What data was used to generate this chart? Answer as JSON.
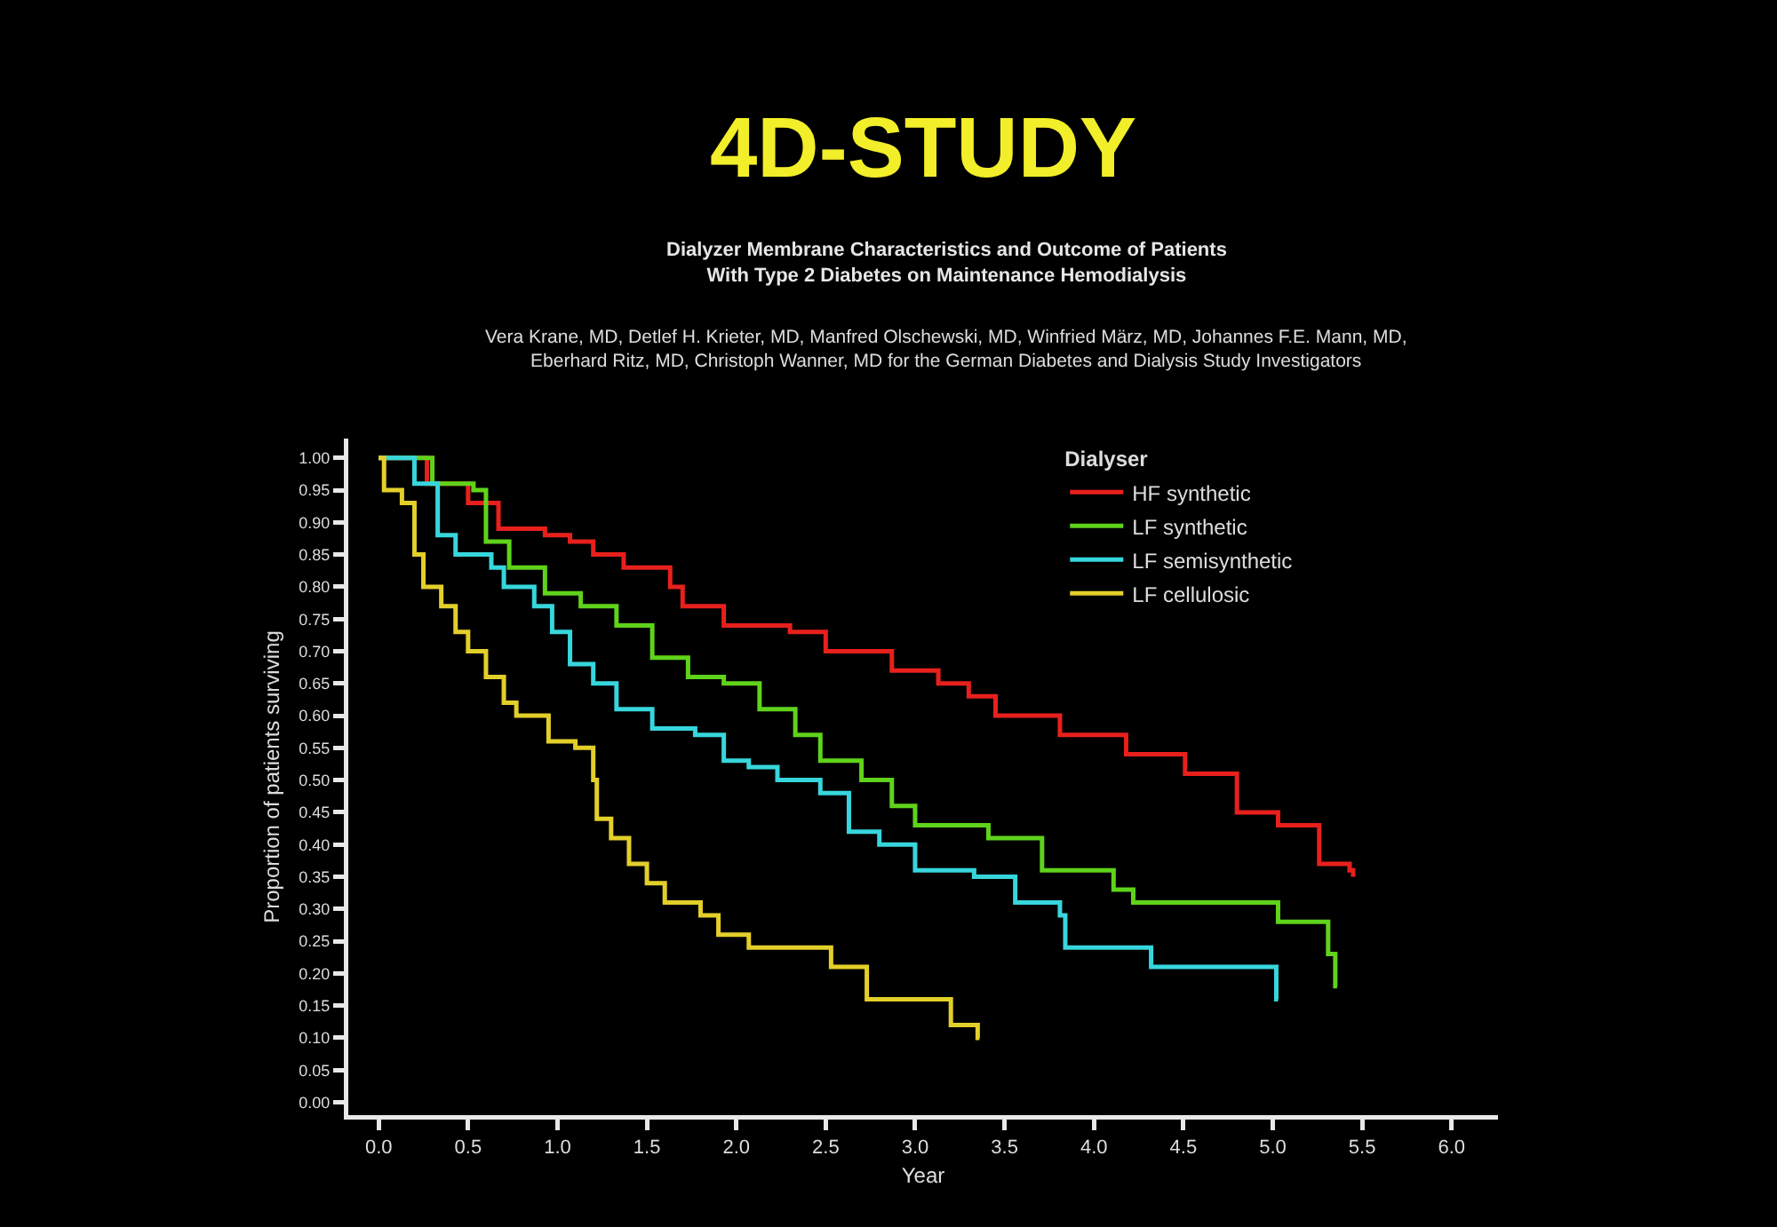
{
  "chart_data": {
    "type": "step",
    "title": "4D-STUDY",
    "subtitle": "Dialyzer Membrane Characteristics and Outcome of Patients\nWith Type 2 Diabetes on Maintenance Hemodialysis",
    "annotations": [
      "Vera Krane, MD, Detlef H. Krieter, MD, Manfred Olschewski, MD, Winfried März, MD, Johannes F.E. Mann, MD,\nEberhard Ritz, MD, Christoph Wanner, MD for the German Diabetes and Dialysis Study Investigators"
    ],
    "xlabel": "Year",
    "ylabel": "Proportion of patients surviving",
    "legend_title": "Dialyser",
    "legend": "top right",
    "grid": false,
    "xlim": [
      -0.17,
      6.26
    ],
    "ylim": [
      -0.02,
      1.03
    ],
    "xticks": [
      {
        "value": 0,
        "label": "0.0"
      },
      0.5,
      {
        "value": 1,
        "label": "1.0"
      },
      1.5,
      {
        "value": 2,
        "label": "2.0"
      },
      2.5,
      {
        "value": 3,
        "label": "3.0"
      },
      3.5,
      {
        "value": 4,
        "label": "4.0"
      },
      4.5,
      {
        "value": 5,
        "label": "5.0"
      },
      5.5,
      {
        "value": 6,
        "label": "6.0"
      }
    ],
    "yticks": [
      {
        "value": 0,
        "label": "0.00"
      },
      0.05,
      {
        "value": 0.1,
        "label": "0.10"
      },
      0.15,
      {
        "value": 0.2,
        "label": "0.20"
      },
      0.25,
      {
        "value": 0.3,
        "label": "0.30"
      },
      0.35,
      {
        "value": 0.4,
        "label": "0.40"
      },
      0.45,
      {
        "value": 0.5,
        "label": "0.50"
      },
      0.55,
      {
        "value": 0.6,
        "label": "0.60"
      },
      0.65,
      {
        "value": 0.7,
        "label": "0.70"
      },
      0.75,
      {
        "value": 0.8,
        "label": "0.80"
      },
      0.85,
      {
        "value": 0.9,
        "label": "0.90"
      },
      0.95,
      {
        "value": 1,
        "label": "1.00"
      }
    ],
    "series": [
      {
        "name": "HF synthetic",
        "color": "#e8201c",
        "x": [
          0,
          0.27,
          0.5,
          0.67,
          0.93,
          1.07,
          1.2,
          1.37,
          1.63,
          1.7,
          1.93,
          2.3,
          2.5,
          2.87,
          3.13,
          3.3,
          3.45,
          3.81,
          4.18,
          4.51,
          4.8,
          5.03,
          5.26,
          5.43,
          5.45
        ],
        "values": [
          1.0,
          0.96,
          0.93,
          0.89,
          0.88,
          0.87,
          0.85,
          0.83,
          0.8,
          0.77,
          0.74,
          0.73,
          0.7,
          0.67,
          0.65,
          0.63,
          0.6,
          0.57,
          0.54,
          0.51,
          0.45,
          0.43,
          0.37,
          0.36,
          0.35
        ]
      },
      {
        "name": "LF synthetic",
        "color": "#5fd31b",
        "x": [
          0,
          0.3,
          0.53,
          0.6,
          0.73,
          0.93,
          1.13,
          1.33,
          1.53,
          1.73,
          1.93,
          2.13,
          2.33,
          2.47,
          2.7,
          2.87,
          3.0,
          3.41,
          3.71,
          4.11,
          4.22,
          5.03,
          5.31,
          5.35,
          5.36
        ],
        "values": [
          1.0,
          0.96,
          0.95,
          0.87,
          0.83,
          0.79,
          0.77,
          0.74,
          0.69,
          0.66,
          0.65,
          0.61,
          0.57,
          0.53,
          0.5,
          0.46,
          0.43,
          0.41,
          0.36,
          0.33,
          0.31,
          0.28,
          0.23,
          0.18,
          0.18
        ]
      },
      {
        "name": "LF semisynthetic",
        "color": "#37d6dc",
        "x": [
          0,
          0.2,
          0.33,
          0.43,
          0.63,
          0.7,
          0.87,
          0.97,
          1.07,
          1.2,
          1.33,
          1.53,
          1.77,
          1.93,
          2.07,
          2.23,
          2.47,
          2.63,
          2.8,
          3.0,
          3.33,
          3.56,
          3.81,
          3.84,
          4.32,
          5.02,
          5.03
        ],
        "values": [
          1.0,
          0.96,
          0.88,
          0.85,
          0.83,
          0.8,
          0.77,
          0.73,
          0.68,
          0.65,
          0.61,
          0.58,
          0.57,
          0.53,
          0.52,
          0.5,
          0.48,
          0.42,
          0.4,
          0.36,
          0.35,
          0.31,
          0.29,
          0.24,
          0.21,
          0.16,
          0.16
        ]
      },
      {
        "name": "LF cellulosic",
        "color": "#e3cf2a",
        "x": [
          0,
          0.03,
          0.13,
          0.2,
          0.25,
          0.35,
          0.43,
          0.5,
          0.6,
          0.7,
          0.77,
          0.95,
          1.1,
          1.2,
          1.22,
          1.3,
          1.4,
          1.5,
          1.6,
          1.8,
          1.9,
          2.07,
          2.53,
          2.73,
          3.2,
          3.35,
          3.36
        ],
        "values": [
          1.0,
          0.95,
          0.93,
          0.85,
          0.8,
          0.77,
          0.73,
          0.7,
          0.66,
          0.62,
          0.6,
          0.56,
          0.55,
          0.5,
          0.44,
          0.41,
          0.37,
          0.34,
          0.31,
          0.29,
          0.26,
          0.24,
          0.21,
          0.16,
          0.12,
          0.1,
          0.1
        ]
      }
    ]
  }
}
